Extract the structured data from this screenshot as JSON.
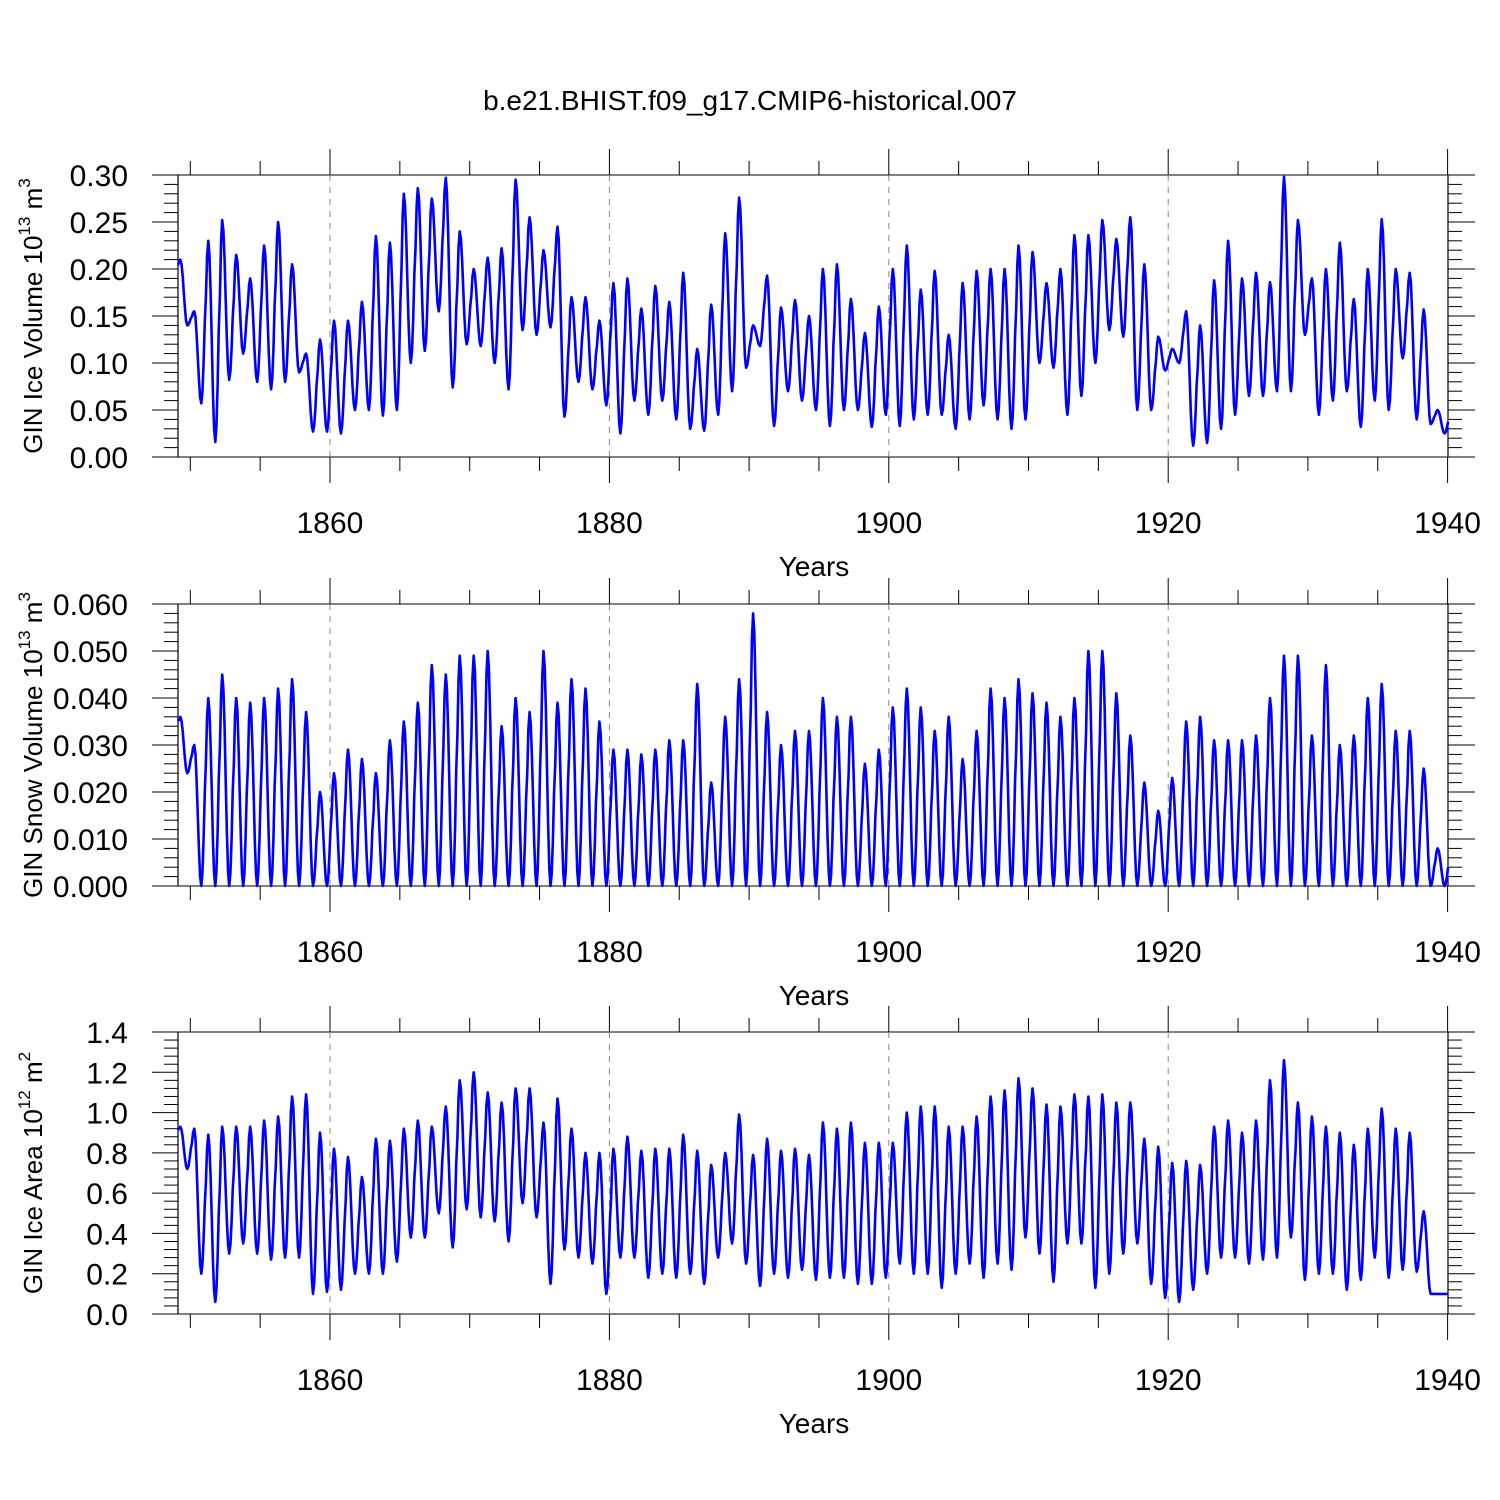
{
  "chart_data": {
    "title": "b.e21.BHIST.f09_g17.CMIP6-historical.007",
    "type": "line",
    "line_color": "#0000ff",
    "series_resolution": "monthly",
    "x_start_year": 1849,
    "x_end_year": 1940,
    "panels": [
      {
        "ylabel_main": "GIN Ice Volume 10",
        "ylabel_exp": "13",
        "ylabel_unit": " m",
        "ylabel_unit_exp": "3",
        "xlabel": "Years",
        "ylim": [
          0,
          0.3
        ],
        "yticks": [
          0,
          0.05,
          0.1,
          0.15,
          0.2,
          0.25,
          0.3
        ],
        "ytick_labels": [
          "0.00",
          "0.05",
          "0.10",
          "0.15",
          "0.20",
          "0.25",
          "0.30"
        ],
        "xticks": [
          1860,
          1880,
          1900,
          1920,
          1940
        ],
        "xtick_labels": [
          "1860",
          "1880",
          "1900",
          "1920",
          "1940"
        ],
        "annual_max": [
          0.21,
          0.155,
          0.23,
          0.252,
          0.215,
          0.19,
          0.225,
          0.25,
          0.205,
          0.11,
          0.125,
          0.145,
          0.145,
          0.165,
          0.235,
          0.228,
          0.28,
          0.286,
          0.275,
          0.297,
          0.24,
          0.2,
          0.212,
          0.222,
          0.295,
          0.255,
          0.22,
          0.245,
          0.17,
          0.17,
          0.145,
          0.185,
          0.19,
          0.158,
          0.182,
          0.165,
          0.196,
          0.115,
          0.162,
          0.238,
          0.276,
          0.14,
          0.193,
          0.159,
          0.167,
          0.15,
          0.2,
          0.205,
          0.168,
          0.132,
          0.16,
          0.2,
          0.225,
          0.178,
          0.198,
          0.13,
          0.185,
          0.198,
          0.2,
          0.2,
          0.225,
          0.218,
          0.185,
          0.2,
          0.236,
          0.236,
          0.252,
          0.232,
          0.255,
          0.205,
          0.128,
          0.115,
          0.155,
          0.14,
          0.188,
          0.23,
          0.19,
          0.196,
          0.186,
          0.298,
          0.252,
          0.19,
          0.2,
          0.228,
          0.168,
          0.2,
          0.253,
          0.2,
          0.196,
          0.157,
          0.05
        ],
        "annual_min": [
          0.14,
          0.057,
          0.016,
          0.082,
          0.11,
          0.08,
          0.072,
          0.08,
          0.09,
          0.027,
          0.027,
          0.025,
          0.05,
          0.05,
          0.044,
          0.05,
          0.1,
          0.113,
          0.155,
          0.074,
          0.12,
          0.118,
          0.1,
          0.072,
          0.135,
          0.13,
          0.138,
          0.043,
          0.08,
          0.072,
          0.055,
          0.025,
          0.06,
          0.045,
          0.06,
          0.04,
          0.03,
          0.028,
          0.045,
          0.07,
          0.095,
          0.118,
          0.033,
          0.07,
          0.06,
          0.05,
          0.033,
          0.05,
          0.05,
          0.032,
          0.045,
          0.033,
          0.04,
          0.045,
          0.045,
          0.03,
          0.04,
          0.055,
          0.04,
          0.03,
          0.04,
          0.1,
          0.095,
          0.045,
          0.065,
          0.1,
          0.135,
          0.128,
          0.05,
          0.05,
          0.092,
          0.1,
          0.012,
          0.015,
          0.03,
          0.045,
          0.065,
          0.065,
          0.07,
          0.07,
          0.13,
          0.045,
          0.06,
          0.07,
          0.032,
          0.06,
          0.05,
          0.105,
          0.04,
          0.035,
          0.025
        ]
      },
      {
        "ylabel_main": "GIN Snow Volume 10",
        "ylabel_exp": "13",
        "ylabel_unit": " m",
        "ylabel_unit_exp": "3",
        "xlabel": "Years",
        "ylim": [
          0,
          0.06
        ],
        "yticks": [
          0,
          0.01,
          0.02,
          0.03,
          0.04,
          0.05,
          0.06
        ],
        "ytick_labels": [
          "0.000",
          "0.010",
          "0.020",
          "0.030",
          "0.040",
          "0.050",
          "0.060"
        ],
        "xticks": [
          1860,
          1880,
          1900,
          1920,
          1940
        ],
        "xtick_labels": [
          "1860",
          "1880",
          "1900",
          "1920",
          "1940"
        ],
        "annual_max": [
          0.036,
          0.03,
          0.04,
          0.045,
          0.04,
          0.039,
          0.04,
          0.042,
          0.044,
          0.037,
          0.02,
          0.024,
          0.029,
          0.027,
          0.024,
          0.031,
          0.035,
          0.039,
          0.047,
          0.045,
          0.049,
          0.049,
          0.05,
          0.034,
          0.04,
          0.037,
          0.05,
          0.039,
          0.044,
          0.042,
          0.035,
          0.029,
          0.029,
          0.028,
          0.029,
          0.031,
          0.031,
          0.043,
          0.022,
          0.036,
          0.044,
          0.058,
          0.037,
          0.03,
          0.033,
          0.033,
          0.04,
          0.036,
          0.036,
          0.026,
          0.029,
          0.038,
          0.042,
          0.038,
          0.033,
          0.036,
          0.027,
          0.033,
          0.042,
          0.04,
          0.044,
          0.041,
          0.039,
          0.036,
          0.04,
          0.05,
          0.05,
          0.041,
          0.032,
          0.022,
          0.016,
          0.023,
          0.035,
          0.036,
          0.031,
          0.031,
          0.031,
          0.032,
          0.04,
          0.049,
          0.049,
          0.032,
          0.047,
          0.03,
          0.032,
          0.04,
          0.043,
          0.033,
          0.033,
          0.025,
          0.008
        ],
        "annual_min": [
          0.024,
          0,
          0,
          0,
          0,
          0,
          0,
          0,
          0,
          0,
          0,
          0,
          0,
          0,
          0,
          0,
          0,
          0,
          0,
          0,
          0,
          0,
          0,
          0,
          0,
          0,
          0,
          0,
          0,
          0,
          0,
          0,
          0,
          0,
          0,
          0,
          0,
          0,
          0,
          0,
          0,
          0,
          0,
          0,
          0,
          0,
          0,
          0,
          0,
          0,
          0,
          0,
          0,
          0,
          0,
          0,
          0,
          0,
          0,
          0,
          0,
          0,
          0,
          0,
          0,
          0,
          0,
          0,
          0,
          0,
          0,
          0,
          0,
          0,
          0,
          0,
          0,
          0,
          0,
          0,
          0,
          0,
          0,
          0,
          0,
          0,
          0,
          0,
          0,
          0,
          0
        ]
      },
      {
        "ylabel_main": "GIN Ice Area 10",
        "ylabel_exp": "12",
        "ylabel_unit": " m",
        "ylabel_unit_exp": "2",
        "xlabel": "Years",
        "ylim": [
          0,
          1.4
        ],
        "yticks": [
          0,
          0.2,
          0.4,
          0.6,
          0.8,
          1.0,
          1.2,
          1.4
        ],
        "ytick_labels": [
          "0.0",
          "0.2",
          "0.4",
          "0.6",
          "0.8",
          "1.0",
          "1.2",
          "1.4"
        ],
        "xticks": [
          1860,
          1880,
          1900,
          1920,
          1940
        ],
        "xtick_labels": [
          "1860",
          "1880",
          "1900",
          "1920",
          "1940"
        ],
        "annual_max": [
          0.93,
          0.92,
          0.89,
          0.93,
          0.93,
          0.93,
          0.96,
          0.98,
          1.08,
          1.09,
          0.9,
          0.82,
          0.78,
          0.68,
          0.87,
          0.86,
          0.92,
          0.96,
          0.93,
          1.03,
          1.16,
          1.2,
          1.1,
          1.05,
          1.12,
          1.12,
          0.95,
          1.07,
          0.92,
          0.8,
          0.8,
          0.82,
          0.88,
          0.81,
          0.82,
          0.82,
          0.89,
          0.81,
          0.74,
          0.8,
          0.99,
          0.79,
          0.87,
          0.81,
          0.82,
          0.79,
          0.95,
          0.92,
          0.95,
          0.85,
          0.85,
          0.85,
          1.0,
          1.03,
          1.03,
          0.93,
          0.93,
          0.98,
          1.08,
          1.11,
          1.17,
          1.12,
          1.04,
          1.03,
          1.09,
          1.08,
          1.09,
          1.05,
          1.05,
          0.87,
          0.83,
          0.75,
          0.76,
          0.74,
          0.93,
          0.96,
          0.9,
          0.96,
          1.16,
          1.26,
          1.05,
          0.98,
          0.93,
          0.9,
          0.84,
          0.92,
          1.02,
          0.92,
          0.9,
          0.51,
          0.1
        ],
        "annual_min": [
          0.72,
          0.2,
          0.06,
          0.3,
          0.35,
          0.3,
          0.27,
          0.28,
          0.28,
          0.1,
          0.11,
          0.12,
          0.2,
          0.2,
          0.2,
          0.26,
          0.38,
          0.38,
          0.5,
          0.33,
          0.52,
          0.48,
          0.46,
          0.36,
          0.55,
          0.48,
          0.15,
          0.32,
          0.28,
          0.25,
          0.1,
          0.28,
          0.28,
          0.18,
          0.2,
          0.18,
          0.2,
          0.15,
          0.28,
          0.35,
          0.25,
          0.14,
          0.2,
          0.18,
          0.22,
          0.17,
          0.18,
          0.18,
          0.15,
          0.15,
          0.18,
          0.25,
          0.2,
          0.2,
          0.13,
          0.2,
          0.25,
          0.18,
          0.25,
          0.22,
          0.38,
          0.3,
          0.16,
          0.35,
          0.35,
          0.13,
          0.2,
          0.3,
          0.35,
          0.15,
          0.08,
          0.06,
          0.12,
          0.2,
          0.28,
          0.28,
          0.25,
          0.27,
          0.28,
          0.38,
          0.17,
          0.2,
          0.2,
          0.12,
          0.17,
          0.28,
          0.18,
          0.22,
          0.21,
          0.1,
          0.1
        ]
      }
    ]
  }
}
